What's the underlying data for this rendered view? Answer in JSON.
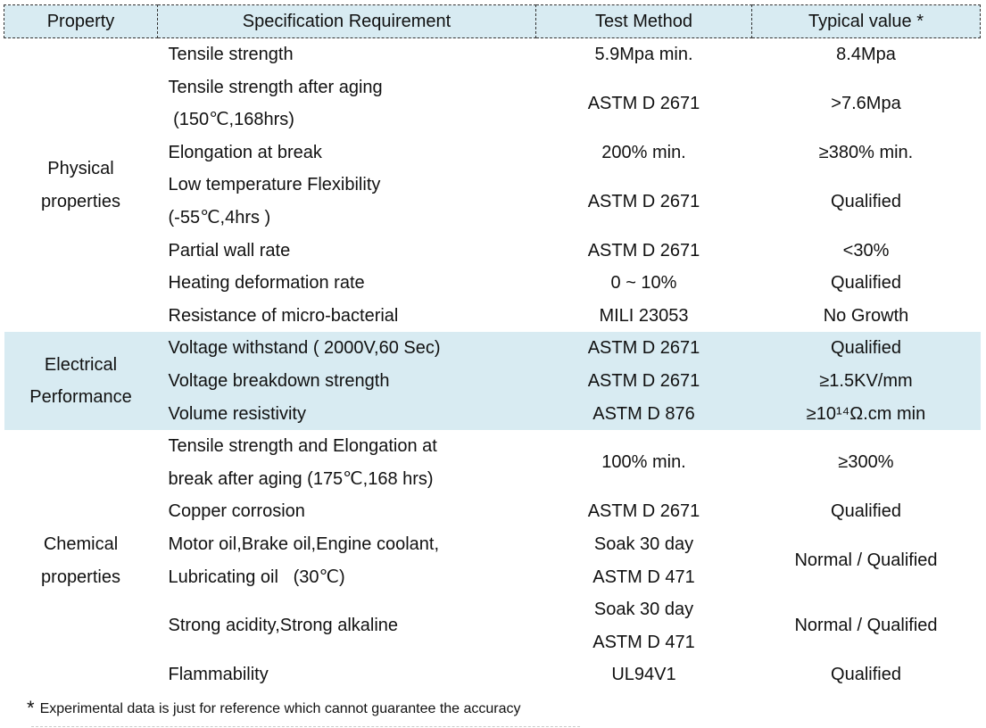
{
  "colors": {
    "header_bg": "#d8ebf2",
    "band_bg": "#d8ebf2",
    "border": "#333333",
    "text": "#111111"
  },
  "header": {
    "columns": [
      "Property",
      "Specification Requirement",
      "Test Method",
      "Typical value *"
    ]
  },
  "groups": [
    {
      "name": "Physical\nproperties",
      "rows": [
        {
          "spec": "Tensile strength",
          "method": "5.9Mpa min.",
          "value": "8.4Mpa"
        },
        {
          "spec": "Tensile strength after aging\n (150℃,168hrs)",
          "method": "ASTM D 2671",
          "value": ">7.6Mpa"
        },
        {
          "spec": "Elongation at break",
          "method": "200% min.",
          "value": "≥380% min."
        },
        {
          "spec": "Low temperature Flexibility\n(-55℃,4hrs )",
          "method": "ASTM D 2671",
          "value": "Qualified"
        },
        {
          "spec": "Partial wall rate",
          "method": "ASTM D 2671",
          "value": "<30%"
        },
        {
          "spec": "Heating deformation rate",
          "method": "0 ~ 10%",
          "value": "Qualified"
        },
        {
          "spec": "Resistance of micro-bacterial",
          "method": "MILI 23053",
          "value": "No Growth"
        }
      ]
    },
    {
      "name": "Electrical\nPerformance",
      "rows": [
        {
          "spec": "Voltage withstand ( 2000V,60 Sec)",
          "method": "ASTM D 2671",
          "value": "Qualified"
        },
        {
          "spec": "Voltage breakdown strength",
          "method": "ASTM D 2671",
          "value": "≥1.5KV/mm"
        },
        {
          "spec": "Volume resistivity",
          "method": "ASTM D 876",
          "value": "≥10¹⁴Ω.cm min"
        }
      ]
    },
    {
      "name": "Chemical\nproperties",
      "rows": [
        {
          "spec": "Tensile strength and Elongation at\nbreak after aging (175℃,168 hrs)",
          "method": "100% min.",
          "value": "≥300%"
        },
        {
          "spec": "Copper corrosion",
          "method": "ASTM D 2671",
          "value": "Qualified"
        },
        {
          "spec": "Motor oil,Brake oil,Engine coolant,\nLubricating oil   (30℃)",
          "method": "Soak 30 day\nASTM D 471",
          "value": "Normal / Qualified"
        },
        {
          "spec": "Strong acidity,Strong alkaline",
          "method": "Soak 30 day\nASTM D 471",
          "value": "Normal / Qualified"
        },
        {
          "spec": "Flammability",
          "method": "UL94V1",
          "value": "Qualified"
        }
      ]
    }
  ],
  "footnote": {
    "marker": "*",
    "text": "Experimental data is just for reference which cannot guarantee the accuracy"
  }
}
